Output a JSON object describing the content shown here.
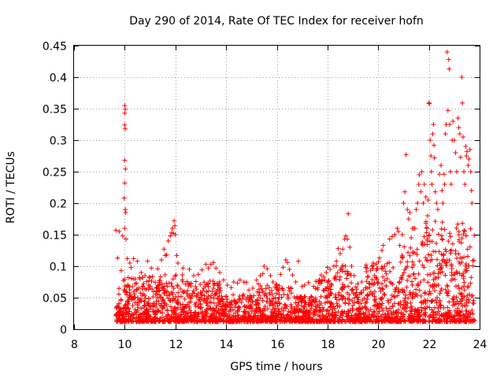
{
  "chart_data": {
    "type": "scatter",
    "title": "Day 290 of 2014, Rate Of TEC Index for receiver hofn",
    "xlabel": "GPS time / hours",
    "ylabel": "ROTI / TECUs",
    "xlim": [
      8,
      24
    ],
    "ylim": [
      0,
      0.45
    ],
    "x_ticks": [
      8,
      10,
      12,
      14,
      16,
      18,
      20,
      22,
      24
    ],
    "x_tick_labels": [
      "8",
      "10",
      "12",
      "14",
      "16",
      "18",
      "20",
      "22",
      "24"
    ],
    "y_ticks": [
      0,
      0.05,
      0.1,
      0.15,
      0.2,
      0.25,
      0.3,
      0.35,
      0.4,
      0.45
    ],
    "y_tick_labels": [
      "0",
      "0.05",
      "0.1",
      "0.15",
      "0.2",
      "0.25",
      "0.3",
      "0.35",
      "0.4",
      "0.45"
    ],
    "grid": true,
    "marker": "plus",
    "color": "#ff0000",
    "points": [
      [
        9.65,
        0.157
      ],
      [
        9.72,
        0.113
      ],
      [
        9.78,
        0.155
      ],
      [
        9.86,
        0.093
      ],
      [
        9.95,
        0.077
      ],
      [
        10.0,
        0.355
      ],
      [
        10.0,
        0.343
      ],
      [
        10.02,
        0.349
      ],
      [
        10.0,
        0.324
      ],
      [
        10.02,
        0.318
      ],
      [
        10.0,
        0.268
      ],
      [
        10.03,
        0.254
      ],
      [
        10.0,
        0.232
      ],
      [
        9.98,
        0.208
      ],
      [
        10.02,
        0.19
      ],
      [
        10.04,
        0.185
      ],
      [
        10.0,
        0.16
      ],
      [
        9.92,
        0.148
      ],
      [
        10.05,
        0.143
      ],
      [
        10.1,
        0.112
      ],
      [
        10.2,
        0.105
      ],
      [
        10.25,
        0.098
      ],
      [
        10.35,
        0.112
      ],
      [
        10.5,
        0.108
      ],
      [
        10.65,
        0.09
      ],
      [
        10.8,
        0.085
      ],
      [
        10.9,
        0.108
      ],
      [
        11.05,
        0.097
      ],
      [
        11.3,
        0.096
      ],
      [
        11.45,
        0.11
      ],
      [
        11.55,
        0.127
      ],
      [
        11.6,
        0.117
      ],
      [
        11.65,
        0.118
      ],
      [
        11.72,
        0.14
      ],
      [
        11.8,
        0.148
      ],
      [
        11.85,
        0.153
      ],
      [
        11.88,
        0.16
      ],
      [
        11.92,
        0.152
      ],
      [
        11.95,
        0.172
      ],
      [
        11.98,
        0.164
      ],
      [
        12.0,
        0.15
      ],
      [
        12.05,
        0.117
      ],
      [
        12.1,
        0.105
      ],
      [
        12.3,
        0.097
      ],
      [
        12.55,
        0.095
      ],
      [
        12.72,
        0.085
      ],
      [
        12.9,
        0.087
      ],
      [
        13.05,
        0.094
      ],
      [
        13.2,
        0.103
      ],
      [
        13.3,
        0.097
      ],
      [
        13.4,
        0.103
      ],
      [
        13.5,
        0.106
      ],
      [
        13.6,
        0.097
      ],
      [
        13.75,
        0.09
      ],
      [
        13.9,
        0.078
      ],
      [
        14.05,
        0.07
      ],
      [
        14.2,
        0.066
      ],
      [
        14.3,
        0.075
      ],
      [
        14.45,
        0.073
      ],
      [
        14.55,
        0.078
      ],
      [
        14.7,
        0.075
      ],
      [
        14.8,
        0.074
      ],
      [
        14.9,
        0.062
      ],
      [
        15.05,
        0.065
      ],
      [
        15.2,
        0.078
      ],
      [
        15.35,
        0.085
      ],
      [
        15.45,
        0.088
      ],
      [
        15.5,
        0.1
      ],
      [
        15.62,
        0.096
      ],
      [
        15.75,
        0.085
      ],
      [
        15.85,
        0.075
      ],
      [
        16.0,
        0.07
      ],
      [
        16.15,
        0.087
      ],
      [
        16.25,
        0.098
      ],
      [
        16.35,
        0.11
      ],
      [
        16.42,
        0.106
      ],
      [
        16.5,
        0.095
      ],
      [
        16.62,
        0.086
      ],
      [
        16.75,
        0.075
      ],
      [
        16.85,
        0.108
      ],
      [
        17.0,
        0.068
      ],
      [
        17.1,
        0.07
      ],
      [
        17.25,
        0.074
      ],
      [
        17.45,
        0.068
      ],
      [
        17.65,
        0.075
      ],
      [
        17.75,
        0.086
      ],
      [
        17.85,
        0.083
      ],
      [
        17.95,
        0.09
      ],
      [
        18.0,
        0.098
      ],
      [
        18.1,
        0.095
      ],
      [
        18.25,
        0.1
      ],
      [
        18.35,
        0.108
      ],
      [
        18.42,
        0.128
      ],
      [
        18.5,
        0.12
      ],
      [
        18.6,
        0.127
      ],
      [
        18.68,
        0.143
      ],
      [
        18.72,
        0.148
      ],
      [
        18.78,
        0.143
      ],
      [
        18.82,
        0.183
      ],
      [
        18.88,
        0.13
      ],
      [
        18.95,
        0.1
      ],
      [
        19.05,
        0.085
      ],
      [
        19.2,
        0.072
      ],
      [
        19.35,
        0.075
      ],
      [
        19.5,
        0.098
      ],
      [
        19.6,
        0.084
      ],
      [
        19.75,
        0.1
      ],
      [
        19.85,
        0.085
      ],
      [
        19.9,
        0.082
      ],
      [
        19.95,
        0.096
      ],
      [
        20.05,
        0.113
      ],
      [
        20.15,
        0.125
      ],
      [
        20.2,
        0.133
      ],
      [
        20.25,
        0.1
      ],
      [
        20.35,
        0.104
      ],
      [
        20.45,
        0.143
      ],
      [
        20.55,
        0.147
      ],
      [
        20.65,
        0.15
      ],
      [
        20.75,
        0.16
      ],
      [
        20.8,
        0.155
      ],
      [
        20.85,
        0.133
      ],
      [
        20.95,
        0.15
      ],
      [
        21.0,
        0.2
      ],
      [
        21.05,
        0.218
      ],
      [
        21.1,
        0.277
      ],
      [
        21.15,
        0.19
      ],
      [
        21.2,
        0.175
      ],
      [
        21.25,
        0.185
      ],
      [
        21.3,
        0.145
      ],
      [
        21.35,
        0.16
      ],
      [
        21.4,
        0.16
      ],
      [
        21.45,
        0.16
      ],
      [
        21.5,
        0.19
      ],
      [
        21.55,
        0.2
      ],
      [
        21.6,
        0.23
      ],
      [
        21.62,
        0.245
      ],
      [
        21.68,
        0.218
      ],
      [
        21.72,
        0.25
      ],
      [
        21.78,
        0.2
      ],
      [
        21.82,
        0.23
      ],
      [
        21.88,
        0.21
      ],
      [
        21.92,
        0.16
      ],
      [
        21.95,
        0.18
      ],
      [
        21.97,
        0.205
      ],
      [
        22.0,
        0.359
      ],
      [
        22.02,
        0.358
      ],
      [
        22.05,
        0.3
      ],
      [
        22.08,
        0.275
      ],
      [
        22.1,
        0.25
      ],
      [
        22.12,
        0.23
      ],
      [
        22.15,
        0.31
      ],
      [
        22.18,
        0.325
      ],
      [
        22.2,
        0.292
      ],
      [
        22.22,
        0.272
      ],
      [
        22.25,
        0.218
      ],
      [
        22.3,
        0.2
      ],
      [
        22.35,
        0.19
      ],
      [
        22.42,
        0.246
      ],
      [
        22.48,
        0.26
      ],
      [
        22.52,
        0.22
      ],
      [
        22.55,
        0.2
      ],
      [
        22.6,
        0.246
      ],
      [
        22.62,
        0.23
      ],
      [
        22.65,
        0.31
      ],
      [
        22.68,
        0.325
      ],
      [
        22.72,
        0.44
      ],
      [
        22.75,
        0.347
      ],
      [
        22.78,
        0.428
      ],
      [
        22.8,
        0.413
      ],
      [
        22.82,
        0.325
      ],
      [
        22.85,
        0.25
      ],
      [
        22.88,
        0.23
      ],
      [
        22.92,
        0.3
      ],
      [
        22.95,
        0.33
      ],
      [
        23.0,
        0.3
      ],
      [
        23.05,
        0.28
      ],
      [
        23.1,
        0.25
      ],
      [
        23.15,
        0.335
      ],
      [
        23.18,
        0.32
      ],
      [
        23.22,
        0.31
      ],
      [
        23.25,
        0.273
      ],
      [
        23.3,
        0.4
      ],
      [
        23.32,
        0.359
      ],
      [
        23.35,
        0.305
      ],
      [
        23.38,
        0.25
      ],
      [
        23.42,
        0.23
      ],
      [
        23.45,
        0.29
      ],
      [
        23.48,
        0.275
      ],
      [
        23.5,
        0.282
      ],
      [
        23.55,
        0.26
      ],
      [
        23.58,
        0.27
      ],
      [
        23.62,
        0.285
      ],
      [
        23.65,
        0.25
      ],
      [
        23.68,
        0.22
      ],
      [
        23.7,
        0.2
      ]
    ]
  }
}
